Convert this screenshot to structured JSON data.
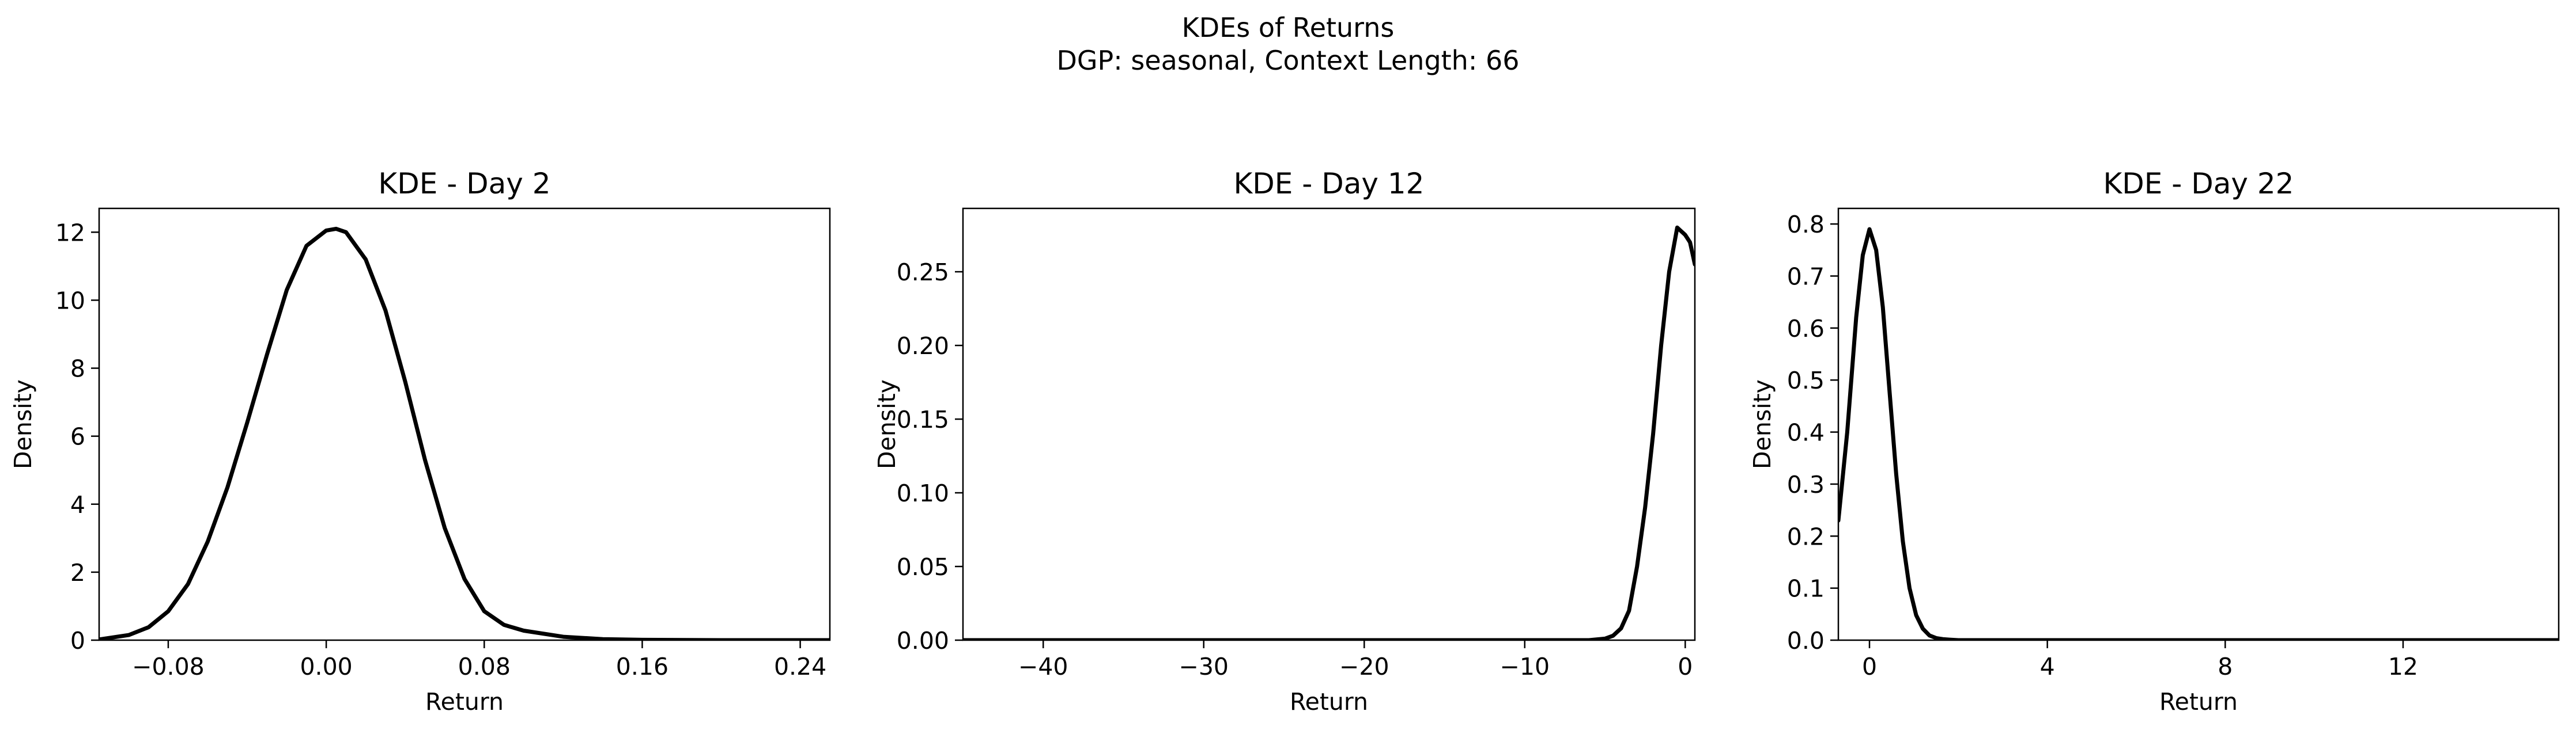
{
  "figure": {
    "title_line1": "KDEs of Returns",
    "title_line2": "DGP: seasonal, Context Length: 66"
  },
  "chart_data": [
    {
      "type": "line",
      "title": "KDE - Day 2",
      "xlabel": "Return",
      "ylabel": "Density",
      "xlim": [
        -0.115,
        0.255
      ],
      "ylim": [
        0,
        12.7
      ],
      "xticks": [
        -0.08,
        0.0,
        0.08,
        0.16,
        0.24
      ],
      "xtick_labels": [
        "−0.08",
        "0.00",
        "0.08",
        "0.16",
        "0.24"
      ],
      "yticks": [
        0,
        2,
        4,
        6,
        8,
        10,
        12
      ],
      "ytick_labels": [
        "0",
        "2",
        "4",
        "6",
        "8",
        "10",
        "12"
      ],
      "line_color": "#000000",
      "grid": false,
      "x": [
        -0.115,
        -0.1,
        -0.09,
        -0.08,
        -0.07,
        -0.06,
        -0.05,
        -0.04,
        -0.03,
        -0.02,
        -0.01,
        0.0,
        0.005,
        0.01,
        0.02,
        0.03,
        0.04,
        0.05,
        0.06,
        0.07,
        0.08,
        0.09,
        0.1,
        0.12,
        0.14,
        0.16,
        0.2,
        0.255
      ],
      "y": [
        0.02,
        0.15,
        0.38,
        0.85,
        1.65,
        2.9,
        4.5,
        6.4,
        8.4,
        10.3,
        11.6,
        12.05,
        12.1,
        12.0,
        11.2,
        9.7,
        7.6,
        5.3,
        3.3,
        1.8,
        0.85,
        0.45,
        0.28,
        0.1,
        0.03,
        0.01,
        0.0,
        0.0
      ]
    },
    {
      "type": "line",
      "title": "KDE - Day 12",
      "xlabel": "Return",
      "ylabel": "Density",
      "xlim": [
        -45,
        0.6
      ],
      "ylim": [
        0,
        0.293
      ],
      "xticks": [
        -40,
        -30,
        -20,
        -10,
        0
      ],
      "xtick_labels": [
        "−40",
        "−30",
        "−20",
        "−10",
        "0"
      ],
      "yticks": [
        0.0,
        0.05,
        0.1,
        0.15,
        0.2,
        0.25
      ],
      "ytick_labels": [
        "0.00",
        "0.05",
        "0.10",
        "0.15",
        "0.20",
        "0.25"
      ],
      "line_color": "#000000",
      "grid": false,
      "x": [
        -45,
        -6,
        -5,
        -4.5,
        -4,
        -3.5,
        -3,
        -2.5,
        -2,
        -1.5,
        -1,
        -0.5,
        0,
        0.3,
        0.6
      ],
      "y": [
        0.0,
        0.0,
        0.001,
        0.003,
        0.008,
        0.02,
        0.05,
        0.09,
        0.14,
        0.2,
        0.25,
        0.28,
        0.275,
        0.27,
        0.255
      ]
    },
    {
      "type": "line",
      "title": "KDE - Day 22",
      "xlabel": "Return",
      "ylabel": "Density",
      "xlim": [
        -0.7,
        15.5
      ],
      "ylim": [
        0,
        0.83
      ],
      "xticks": [
        0,
        4,
        8,
        12
      ],
      "xtick_labels": [
        "0",
        "4",
        "8",
        "12"
      ],
      "yticks": [
        0.0,
        0.1,
        0.2,
        0.3,
        0.4,
        0.5,
        0.6,
        0.7,
        0.8
      ],
      "ytick_labels": [
        "0.0",
        "0.1",
        "0.2",
        "0.3",
        "0.4",
        "0.5",
        "0.6",
        "0.7",
        "0.8"
      ],
      "line_color": "#000000",
      "grid": false,
      "x": [
        -0.7,
        -0.5,
        -0.3,
        -0.15,
        0.0,
        0.15,
        0.3,
        0.45,
        0.6,
        0.75,
        0.9,
        1.05,
        1.2,
        1.35,
        1.5,
        1.65,
        1.8,
        2.0,
        2.5,
        15.5
      ],
      "y": [
        0.23,
        0.4,
        0.62,
        0.74,
        0.79,
        0.75,
        0.64,
        0.48,
        0.32,
        0.19,
        0.1,
        0.048,
        0.022,
        0.009,
        0.004,
        0.002,
        0.001,
        0.0,
        0.0,
        0.0
      ]
    }
  ]
}
